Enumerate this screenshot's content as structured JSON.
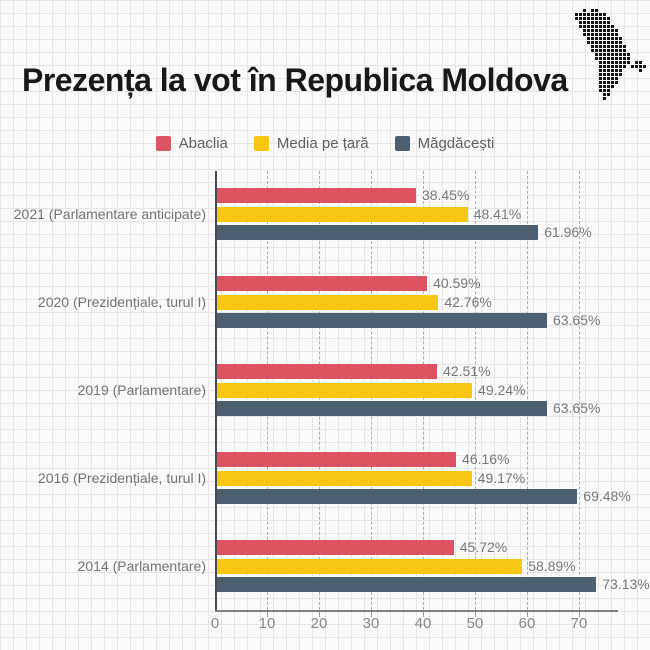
{
  "title": "Prezența la vot în Republica Moldova",
  "icons": {
    "moldova_map": {
      "name": "moldova-map-icon",
      "style": "black dot-matrix silhouette of Moldova"
    }
  },
  "colors": {
    "background": "#fafafa",
    "grid_paper_line": "#e6e6e6",
    "title_text": "#181818",
    "label_gray": "#6f7478",
    "value_gray": "#75797e",
    "axis_gray": "#7d8186",
    "dashed_gridline": "#aeaeae"
  },
  "chart_data": {
    "type": "bar",
    "orientation": "horizontal",
    "title": "Prezența la vot în Republica Moldova",
    "categories": [
      "2021 (Parlamentare anticipate)",
      "2020 (Prezidențiale, turul I)",
      "2019 (Parlamentare)",
      "2016 (Prezidențiale, turul I)",
      "2014 (Parlamentare)"
    ],
    "series": [
      {
        "name": "Abaclia",
        "color": "#DC5461",
        "values": [
          38.45,
          40.59,
          42.51,
          46.16,
          45.72
        ]
      },
      {
        "name": "Media pe țară",
        "color": "#F8C714",
        "values": [
          48.41,
          42.76,
          49.24,
          49.17,
          58.89
        ]
      },
      {
        "name": "Măgdăcești",
        "color": "#4D6073",
        "values": [
          61.96,
          63.65,
          63.65,
          69.48,
          73.13
        ]
      }
    ],
    "value_suffix": "%",
    "value_decimals": 2,
    "x_ticks": [
      0,
      10,
      20,
      30,
      40,
      50,
      60,
      70
    ],
    "xlim": [
      0,
      77
    ],
    "grid": "dashed-vertical",
    "legend_position": "top"
  }
}
